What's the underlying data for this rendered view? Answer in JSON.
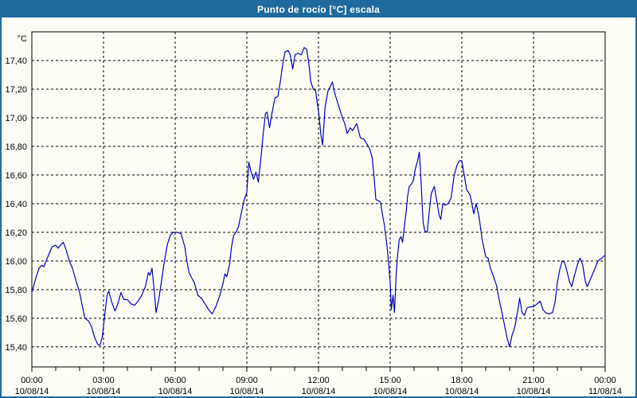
{
  "window": {
    "title": "Punto de rocío [°C] escala"
  },
  "colors": {
    "titlebar": "#1f6a9e",
    "border": "#1f6a9e",
    "plot_background": "#fdfdf6",
    "grid": "#000000",
    "line": "#0000bd",
    "text": "#000000",
    "title_text": "#ffffff"
  },
  "chart_data": {
    "type": "line",
    "title": "Punto de rocío [°C] escala",
    "series_name": "Punto de rocío",
    "unit_label": "°C",
    "grid": true,
    "legend": "none",
    "x_axis": {
      "unit": "hours",
      "range": [
        0,
        24
      ],
      "minor_tick_step_hours": 1,
      "major_ticks": [
        {
          "t": 0,
          "time": "00:00",
          "date": "10/08/14"
        },
        {
          "t": 3,
          "time": "03:00",
          "date": "10/08/14"
        },
        {
          "t": 6,
          "time": "06:00",
          "date": "10/08/14"
        },
        {
          "t": 9,
          "time": "09:00",
          "date": "10/08/14"
        },
        {
          "t": 12,
          "time": "12:00",
          "date": "10/08/14"
        },
        {
          "t": 15,
          "time": "15:00",
          "date": "10/08/14"
        },
        {
          "t": 18,
          "time": "18:00",
          "date": "10/08/14"
        },
        {
          "t": 21,
          "time": "21:00",
          "date": "10/08/14"
        },
        {
          "t": 24,
          "time": "00:00",
          "date": "11/08/14"
        }
      ]
    },
    "y_axis": {
      "range": [
        15.26,
        17.6
      ],
      "ticks": [
        {
          "value": 17.4,
          "label": "17,40"
        },
        {
          "value": 17.2,
          "label": "17,20"
        },
        {
          "value": 17.0,
          "label": "17,00"
        },
        {
          "value": 16.8,
          "label": "16,80"
        },
        {
          "value": 16.6,
          "label": "16,60"
        },
        {
          "value": 16.4,
          "label": "16,40"
        },
        {
          "value": 16.2,
          "label": "16,20"
        },
        {
          "value": 16.0,
          "label": "16,00"
        },
        {
          "value": 15.8,
          "label": "15,80"
        },
        {
          "value": 15.6,
          "label": "15,60"
        },
        {
          "value": 15.4,
          "label": "15,40"
        }
      ]
    },
    "points": [
      [
        0.0,
        15.78
      ],
      [
        0.1,
        15.84
      ],
      [
        0.2,
        15.9
      ],
      [
        0.3,
        15.95
      ],
      [
        0.42,
        15.97
      ],
      [
        0.5,
        15.96
      ],
      [
        0.6,
        16.0
      ],
      [
        0.72,
        16.05
      ],
      [
        0.85,
        16.1
      ],
      [
        1.0,
        16.11
      ],
      [
        1.1,
        16.09
      ],
      [
        1.25,
        16.12
      ],
      [
        1.32,
        16.13
      ],
      [
        1.45,
        16.07
      ],
      [
        1.57,
        16.0
      ],
      [
        1.7,
        15.95
      ],
      [
        1.85,
        15.86
      ],
      [
        2.0,
        15.78
      ],
      [
        2.12,
        15.68
      ],
      [
        2.22,
        15.6
      ],
      [
        2.38,
        15.58
      ],
      [
        2.5,
        15.54
      ],
      [
        2.62,
        15.47
      ],
      [
        2.75,
        15.42
      ],
      [
        2.85,
        15.41
      ],
      [
        2.95,
        15.47
      ],
      [
        3.05,
        15.62
      ],
      [
        3.15,
        15.76
      ],
      [
        3.22,
        15.79
      ],
      [
        3.35,
        15.71
      ],
      [
        3.48,
        15.65
      ],
      [
        3.6,
        15.7
      ],
      [
        3.73,
        15.78
      ],
      [
        3.85,
        15.73
      ],
      [
        4.0,
        15.73
      ],
      [
        4.15,
        15.7
      ],
      [
        4.3,
        15.69
      ],
      [
        4.45,
        15.72
      ],
      [
        4.6,
        15.76
      ],
      [
        4.75,
        15.82
      ],
      [
        4.88,
        15.92
      ],
      [
        4.95,
        15.9
      ],
      [
        5.03,
        15.95
      ],
      [
        5.12,
        15.8
      ],
      [
        5.2,
        15.64
      ],
      [
        5.3,
        15.72
      ],
      [
        5.42,
        15.85
      ],
      [
        5.55,
        16.0
      ],
      [
        5.68,
        16.12
      ],
      [
        5.8,
        16.18
      ],
      [
        5.92,
        16.2
      ],
      [
        6.1,
        16.2
      ],
      [
        6.25,
        16.19
      ],
      [
        6.4,
        16.1
      ],
      [
        6.5,
        15.99
      ],
      [
        6.58,
        15.92
      ],
      [
        6.7,
        15.88
      ],
      [
        6.8,
        15.85
      ],
      [
        6.95,
        15.76
      ],
      [
        7.1,
        15.74
      ],
      [
        7.25,
        15.7
      ],
      [
        7.4,
        15.66
      ],
      [
        7.55,
        15.63
      ],
      [
        7.7,
        15.68
      ],
      [
        7.85,
        15.75
      ],
      [
        8.0,
        15.84
      ],
      [
        8.08,
        15.91
      ],
      [
        8.16,
        15.89
      ],
      [
        8.28,
        15.98
      ],
      [
        8.35,
        16.09
      ],
      [
        8.45,
        16.18
      ],
      [
        8.55,
        16.2
      ],
      [
        8.65,
        16.24
      ],
      [
        8.75,
        16.32
      ],
      [
        8.88,
        16.42
      ],
      [
        9.0,
        16.48
      ],
      [
        9.08,
        16.69
      ],
      [
        9.18,
        16.62
      ],
      [
        9.28,
        16.57
      ],
      [
        9.38,
        16.62
      ],
      [
        9.48,
        16.55
      ],
      [
        9.58,
        16.7
      ],
      [
        9.68,
        16.88
      ],
      [
        9.78,
        17.03
      ],
      [
        9.85,
        17.04
      ],
      [
        9.95,
        16.93
      ],
      [
        10.05,
        17.03
      ],
      [
        10.18,
        17.14
      ],
      [
        10.3,
        17.15
      ],
      [
        10.4,
        17.25
      ],
      [
        10.5,
        17.37
      ],
      [
        10.6,
        17.46
      ],
      [
        10.72,
        17.47
      ],
      [
        10.82,
        17.44
      ],
      [
        10.92,
        17.34
      ],
      [
        11.02,
        17.44
      ],
      [
        11.15,
        17.45
      ],
      [
        11.28,
        17.44
      ],
      [
        11.4,
        17.49
      ],
      [
        11.5,
        17.48
      ],
      [
        11.58,
        17.4
      ],
      [
        11.68,
        17.25
      ],
      [
        11.78,
        17.2
      ],
      [
        11.88,
        17.19
      ],
      [
        11.95,
        17.1
      ],
      [
        12.02,
        17.02
      ],
      [
        12.1,
        16.88
      ],
      [
        12.17,
        16.81
      ],
      [
        12.28,
        17.08
      ],
      [
        12.4,
        17.19
      ],
      [
        12.5,
        17.22
      ],
      [
        12.58,
        17.25
      ],
      [
        12.7,
        17.16
      ],
      [
        12.85,
        17.08
      ],
      [
        13.0,
        17.0
      ],
      [
        13.1,
        16.96
      ],
      [
        13.2,
        16.89
      ],
      [
        13.33,
        16.93
      ],
      [
        13.43,
        16.91
      ],
      [
        13.6,
        16.96
      ],
      [
        13.75,
        16.86
      ],
      [
        13.9,
        16.85
      ],
      [
        14.05,
        16.81
      ],
      [
        14.15,
        16.78
      ],
      [
        14.25,
        16.72
      ],
      [
        14.33,
        16.58
      ],
      [
        14.4,
        16.43
      ],
      [
        14.5,
        16.42
      ],
      [
        14.6,
        16.41
      ],
      [
        14.68,
        16.32
      ],
      [
        14.75,
        16.26
      ],
      [
        14.8,
        16.2
      ],
      [
        14.87,
        16.1
      ],
      [
        14.93,
        16.0
      ],
      [
        15.0,
        15.85
      ],
      [
        15.05,
        15.66
      ],
      [
        15.12,
        15.76
      ],
      [
        15.18,
        15.64
      ],
      [
        15.25,
        15.9
      ],
      [
        15.3,
        16.02
      ],
      [
        15.38,
        16.15
      ],
      [
        15.45,
        16.17
      ],
      [
        15.52,
        16.13
      ],
      [
        15.6,
        16.25
      ],
      [
        15.68,
        16.36
      ],
      [
        15.73,
        16.45
      ],
      [
        15.8,
        16.52
      ],
      [
        15.9,
        16.54
      ],
      [
        15.97,
        16.56
      ],
      [
        16.05,
        16.64
      ],
      [
        16.15,
        16.7
      ],
      [
        16.22,
        16.76
      ],
      [
        16.28,
        16.6
      ],
      [
        16.33,
        16.43
      ],
      [
        16.38,
        16.27
      ],
      [
        16.45,
        16.21
      ],
      [
        16.55,
        16.2
      ],
      [
        16.62,
        16.32
      ],
      [
        16.72,
        16.47
      ],
      [
        16.85,
        16.52
      ],
      [
        16.95,
        16.42
      ],
      [
        17.05,
        16.32
      ],
      [
        17.12,
        16.29
      ],
      [
        17.2,
        16.4
      ],
      [
        17.3,
        16.39
      ],
      [
        17.42,
        16.4
      ],
      [
        17.55,
        16.44
      ],
      [
        17.68,
        16.6
      ],
      [
        17.8,
        16.67
      ],
      [
        17.9,
        16.7
      ],
      [
        18.0,
        16.7
      ],
      [
        18.1,
        16.6
      ],
      [
        18.2,
        16.5
      ],
      [
        18.35,
        16.46
      ],
      [
        18.5,
        16.33
      ],
      [
        18.6,
        16.4
      ],
      [
        18.72,
        16.31
      ],
      [
        18.85,
        16.15
      ],
      [
        19.0,
        16.03
      ],
      [
        19.1,
        16.02
      ],
      [
        19.2,
        15.95
      ],
      [
        19.35,
        15.88
      ],
      [
        19.45,
        15.83
      ],
      [
        19.55,
        15.74
      ],
      [
        19.68,
        15.64
      ],
      [
        19.8,
        15.54
      ],
      [
        19.9,
        15.46
      ],
      [
        20.0,
        15.4
      ],
      [
        20.1,
        15.48
      ],
      [
        20.22,
        15.54
      ],
      [
        20.35,
        15.66
      ],
      [
        20.42,
        15.74
      ],
      [
        20.52,
        15.64
      ],
      [
        20.62,
        15.62
      ],
      [
        20.72,
        15.67
      ],
      [
        20.85,
        15.68
      ],
      [
        21.0,
        15.68
      ],
      [
        21.15,
        15.7
      ],
      [
        21.28,
        15.72
      ],
      [
        21.4,
        15.66
      ],
      [
        21.5,
        15.64
      ],
      [
        21.65,
        15.63
      ],
      [
        21.8,
        15.64
      ],
      [
        21.9,
        15.71
      ],
      [
        22.0,
        15.85
      ],
      [
        22.1,
        15.94
      ],
      [
        22.2,
        16.0
      ],
      [
        22.3,
        15.99
      ],
      [
        22.4,
        15.93
      ],
      [
        22.5,
        15.86
      ],
      [
        22.6,
        15.82
      ],
      [
        22.7,
        15.89
      ],
      [
        22.85,
        15.98
      ],
      [
        22.95,
        16.02
      ],
      [
        23.05,
        15.98
      ],
      [
        23.18,
        15.85
      ],
      [
        23.25,
        15.82
      ],
      [
        23.45,
        15.9
      ],
      [
        23.6,
        15.96
      ],
      [
        23.7,
        16.0
      ],
      [
        23.85,
        16.02
      ],
      [
        24.0,
        16.04
      ]
    ]
  }
}
